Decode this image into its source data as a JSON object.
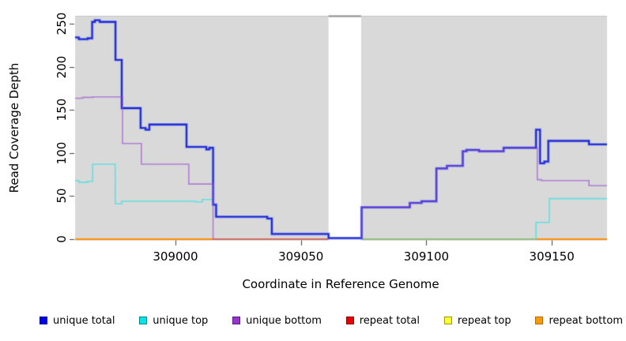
{
  "axes": {
    "x": {
      "label": "Coordinate in Reference Genome",
      "ticks": [
        "309000",
        "309050",
        "309100",
        "309150"
      ],
      "tick_values": [
        309000,
        309050,
        309100,
        309150
      ]
    },
    "y": {
      "label": "Read Coverage Depth",
      "ticks": [
        "0",
        "50",
        "100",
        "150",
        "200",
        "250"
      ],
      "tick_values": [
        0,
        50,
        100,
        150,
        200,
        250
      ]
    }
  },
  "chart_data": {
    "type": "line",
    "step": "after",
    "title": "",
    "xlabel": "Coordinate in Reference Genome",
    "ylabel": "Read Coverage Depth",
    "xlim": [
      308960,
      309172
    ],
    "ylim": [
      0,
      258.2
    ],
    "grid": false,
    "legend_position": "bottom",
    "panel": {
      "background": "#d9d9d9",
      "top_border": "#c6c6c6",
      "masked_region": {
        "x0": 309061,
        "x1": 309074,
        "fill": "#ffffff",
        "top_border": "#8a8a8a"
      }
    },
    "draw_order": [
      "repeat total",
      "repeat top",
      "repeat bottom",
      "unique top",
      "unique total",
      "unique bottom"
    ],
    "masked_after": "repeat bottom",
    "series": [
      {
        "name": "unique total",
        "legend_color": "#0000e6",
        "legend_border": "#00008b",
        "line": {
          "color": "#1e1ed2",
          "width": 1.8,
          "halo": "rgba(110,140,235,0.85)",
          "halo_width": 3.4
        },
        "segments": [
          [
            [
              308960,
              234
            ],
            [
              308961.5,
              232
            ],
            [
              308965,
              233
            ],
            [
              308966.8,
              252
            ],
            [
              308967.9,
              254
            ],
            [
              308969.8,
              252
            ],
            [
              308976.1,
              208
            ],
            [
              308978.6,
              152
            ],
            [
              308986.1,
              129
            ],
            [
              308988.1,
              127
            ],
            [
              308989.6,
              133
            ],
            [
              309004.4,
              107
            ],
            [
              309012.3,
              104
            ],
            [
              309013.5,
              106
            ],
            [
              309015,
              40
            ],
            [
              309016.2,
              26
            ],
            [
              309036.6,
              24
            ],
            [
              309038.4,
              6
            ],
            [
              309061,
              1.2
            ],
            [
              309074.2,
              37
            ],
            [
              309093.4,
              42
            ],
            [
              309098.1,
              44
            ],
            [
              309104,
              82
            ],
            [
              309108.2,
              85
            ],
            [
              309114.5,
              102
            ],
            [
              309116,
              103.5
            ],
            [
              309121,
              102
            ],
            [
              309130.8,
              106
            ],
            [
              309143.7,
              127
            ],
            [
              309145.3,
              88
            ],
            [
              309147,
              90
            ],
            [
              309148.6,
              114
            ],
            [
              309164.8,
              110
            ],
            [
              309172,
              110
            ]
          ]
        ]
      },
      {
        "name": "unique top",
        "legend_color": "#00e6e6",
        "legend_border": "#008b8b",
        "line": {
          "color": "rgba(60,225,225,0.75)",
          "width": 1.6
        },
        "segments": [
          [
            [
              308960,
              68
            ],
            [
              308961.5,
              66
            ],
            [
              308965,
              67
            ],
            [
              308967,
              87
            ],
            [
              308976,
              41
            ],
            [
              308978.6,
              44
            ],
            [
              309008.2,
              43
            ],
            [
              309010.7,
              46
            ],
            [
              309015,
              40
            ],
            [
              309016.2,
              26
            ],
            [
              309036.6,
              24
            ],
            [
              309038.4,
              6
            ],
            [
              309061,
              1.2
            ],
            [
              309074.2,
              0
            ],
            [
              309143.7,
              19.5
            ],
            [
              309149,
              47
            ],
            [
              309172,
              47
            ]
          ]
        ]
      },
      {
        "name": "unique bottom",
        "legend_color": "#9933cc",
        "legend_border": "#551a8b",
        "line": {
          "color": "rgba(150,70,210,0.62)",
          "width": 1.6
        },
        "segments": [
          [
            [
              308960,
              163.5
            ],
            [
              308963,
              164.5
            ],
            [
              308967,
              165
            ],
            [
              308978.9,
              111
            ],
            [
              308986.4,
              87
            ],
            [
              309005.3,
              64
            ],
            [
              309015,
              0
            ],
            [
              309061,
              0
            ]
          ],
          [
            [
              309074.2,
              0
            ],
            [
              309074.2,
              37
            ],
            [
              309093.4,
              42
            ],
            [
              309098.1,
              44
            ],
            [
              309104,
              82
            ],
            [
              309108.2,
              85
            ],
            [
              309114.5,
              102
            ],
            [
              309116,
              103.5
            ],
            [
              309121,
              102
            ],
            [
              309130.8,
              106
            ],
            [
              309144.2,
              69
            ],
            [
              309145.9,
              68
            ],
            [
              309164.8,
              62
            ],
            [
              309172,
              62
            ]
          ]
        ]
      },
      {
        "name": "repeat total",
        "legend_color": "#e60000",
        "legend_border": "#8b0000",
        "line": {
          "color": "#dd0000",
          "width": 1.2
        },
        "segments": [
          [
            [
              308960,
              0
            ],
            [
              309172,
              0
            ]
          ]
        ]
      },
      {
        "name": "repeat top",
        "legend_color": "#ffff33",
        "legend_border": "#9a9a00",
        "line": {
          "color": "#ffee00",
          "width": 1.2
        },
        "segments": [
          [
            [
              308960,
              0
            ],
            [
              309172,
              0
            ]
          ]
        ]
      },
      {
        "name": "repeat bottom",
        "legend_color": "#ff9900",
        "legend_border": "#b36b00",
        "line": {
          "color": "#ff8c00",
          "width": 2
        },
        "segments": [
          [
            [
              308960,
              0
            ],
            [
              309172,
              0
            ]
          ]
        ]
      }
    ]
  }
}
